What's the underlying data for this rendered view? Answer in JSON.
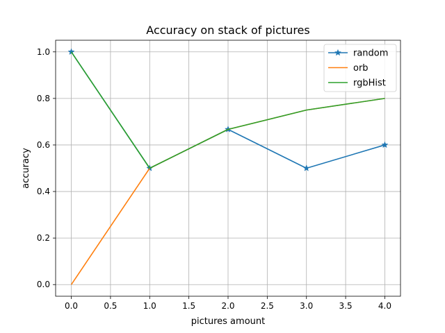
{
  "chart_data": {
    "type": "line",
    "title": "Accuracy on stack of pictures",
    "xlabel": "pictures amount",
    "ylabel": "accuracy",
    "xlim": [
      -0.2,
      4.2
    ],
    "ylim": [
      -0.05,
      1.05
    ],
    "xticks": [
      0.0,
      0.5,
      1.0,
      1.5,
      2.0,
      2.5,
      3.0,
      3.5,
      4.0
    ],
    "xtick_labels": [
      "0.0",
      "0.5",
      "1.0",
      "1.5",
      "2.0",
      "2.5",
      "3.0",
      "3.5",
      "4.0"
    ],
    "yticks": [
      0.0,
      0.2,
      0.4,
      0.6,
      0.8,
      1.0
    ],
    "ytick_labels": [
      "0.0",
      "0.2",
      "0.4",
      "0.6",
      "0.8",
      "1.0"
    ],
    "grid": true,
    "legend_position": "top-right",
    "x": [
      0,
      1,
      2,
      3,
      4
    ],
    "series": [
      {
        "name": "random",
        "values": [
          1.0,
          0.5,
          0.667,
          0.5,
          0.6
        ],
        "color": "#1f77b4",
        "marker": "star"
      },
      {
        "name": "orb",
        "values": [
          0.0,
          0.5,
          0.667,
          0.75,
          0.8
        ],
        "color": "#ff7f0e",
        "marker": "none"
      },
      {
        "name": "rgbHist",
        "values": [
          1.0,
          0.5,
          0.667,
          0.75,
          0.8
        ],
        "color": "#2ca02c",
        "marker": "none"
      }
    ]
  }
}
